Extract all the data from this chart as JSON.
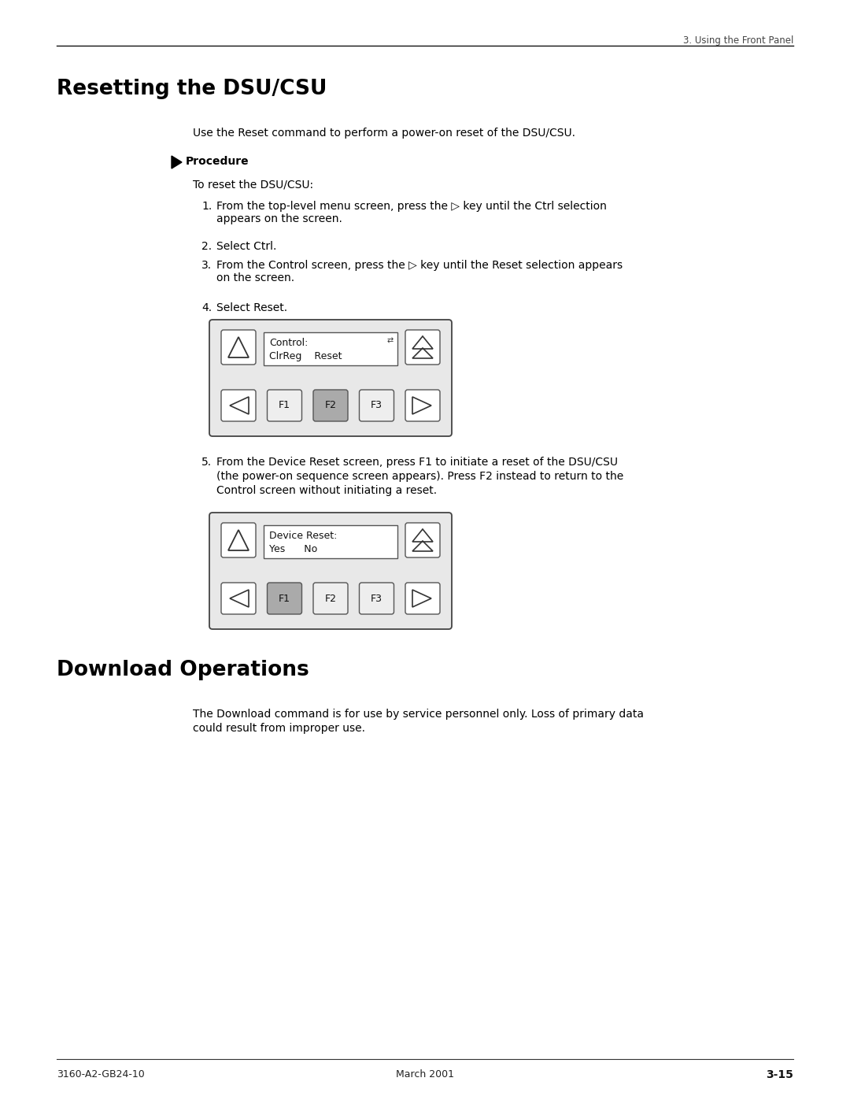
{
  "page_header_right": "3. Using the Front Panel",
  "section1_title": "Resetting the DSU/CSU",
  "section1_intro": "Use the Reset command to perform a power-on reset of the DSU/CSU.",
  "procedure_label": "Procedure",
  "procedure_intro": "To reset the DSU/CSU:",
  "step1": "From the top-level menu screen, press the ▷ key until the Ctrl selection\nappears on the screen.",
  "step2": "Select Ctrl.",
  "step3": "From the Control screen, press the ▷ key until the Reset selection appears\non the screen.",
  "step4": "Select Reset.",
  "step5_line1": "From the Device Reset screen, press F1 to initiate a reset of the DSU/CSU",
  "step5_line2": "(the power-on sequence screen appears). Press F2 instead to return to the",
  "step5_line3": "Control screen without initiating a reset.",
  "panel1_line1": "Control:",
  "panel1_line2": "ClrReg    Reset",
  "panel1_highlighted_btn": "F2",
  "panel2_line1": "Device Reset:",
  "panel2_line2": "Yes      No",
  "panel2_highlighted_btn": "F1",
  "section2_title": "Download Operations",
  "section2_text_line1": "The Download command is for use by service personnel only. Loss of primary data",
  "section2_text_line2": "could result from improper use.",
  "footer_left": "3160-A2-GB24-10",
  "footer_center": "March 2001",
  "footer_right": "3-15",
  "bg_color": "#ffffff",
  "text_color": "#000000",
  "btn_highlight": "#aaaaaa",
  "btn_normal": "#eeeeee"
}
